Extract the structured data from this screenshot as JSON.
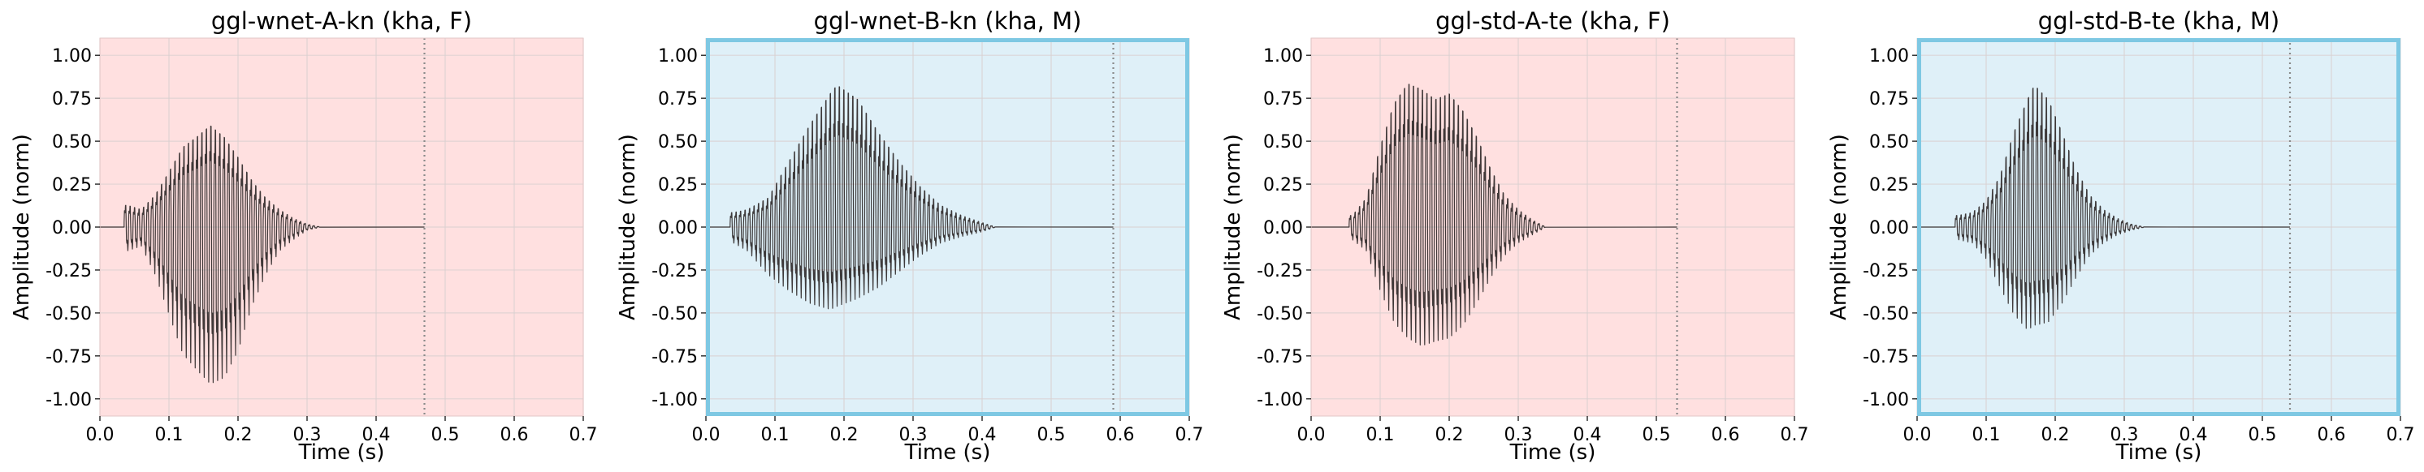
{
  "chart_data": [
    {
      "type": "line",
      "title": "ggl-wnet-A-kn (kha, F)",
      "xlabel": "Time (s)",
      "ylabel": "Amplitude (norm)",
      "xlim": [
        0.0,
        0.7
      ],
      "ylim": [
        -1.1,
        1.1
      ],
      "xticks": [
        "0.0",
        "0.1",
        "0.2",
        "0.3",
        "0.4",
        "0.5",
        "0.6",
        "0.7"
      ],
      "yticks": [
        "1.00",
        "0.75",
        "0.50",
        "0.25",
        "0.00",
        "-0.25",
        "-0.50",
        "-0.75",
        "-1.00"
      ],
      "background_color": "#ffe0e0",
      "border_color": "",
      "grid": true,
      "marker_x": 0.47,
      "signal_end": 0.47,
      "envelope": [
        {
          "t": 0.04,
          "upper": 0.15,
          "lower": -0.15
        },
        {
          "t": 0.06,
          "upper": 0.12,
          "lower": -0.12
        },
        {
          "t": 0.08,
          "upper": 0.22,
          "lower": -0.3
        },
        {
          "t": 0.1,
          "upper": 0.38,
          "lower": -0.55
        },
        {
          "t": 0.12,
          "upper": 0.55,
          "lower": -0.8
        },
        {
          "t": 0.14,
          "upper": 0.62,
          "lower": -0.9
        },
        {
          "t": 0.16,
          "upper": 0.7,
          "lower": -0.99
        },
        {
          "t": 0.18,
          "upper": 0.62,
          "lower": -0.95
        },
        {
          "t": 0.2,
          "upper": 0.48,
          "lower": -0.78
        },
        {
          "t": 0.22,
          "upper": 0.32,
          "lower": -0.5
        },
        {
          "t": 0.24,
          "upper": 0.2,
          "lower": -0.3
        },
        {
          "t": 0.26,
          "upper": 0.12,
          "lower": -0.15
        },
        {
          "t": 0.28,
          "upper": 0.06,
          "lower": -0.08
        },
        {
          "t": 0.3,
          "upper": 0.02,
          "lower": -0.02
        },
        {
          "t": 0.32,
          "upper": 0.0,
          "lower": 0.0
        }
      ]
    },
    {
      "type": "line",
      "title": "ggl-wnet-B-kn (kha, M)",
      "xlabel": "Time (s)",
      "ylabel": "Amplitude (norm)",
      "xlim": [
        0.0,
        0.7
      ],
      "ylim": [
        -1.1,
        1.1
      ],
      "xticks": [
        "0.0",
        "0.1",
        "0.2",
        "0.3",
        "0.4",
        "0.5",
        "0.6",
        "0.7"
      ],
      "yticks": [
        "1.00",
        "0.75",
        "0.50",
        "0.25",
        "0.00",
        "-0.25",
        "-0.50",
        "-0.75",
        "-1.00"
      ],
      "background_color": "#dff0f8",
      "border_color": "#7ec8e3",
      "grid": true,
      "marker_x": 0.59,
      "signal_end": 0.59,
      "envelope": [
        {
          "t": 0.04,
          "upper": 0.1,
          "lower": -0.1
        },
        {
          "t": 0.06,
          "upper": 0.12,
          "lower": -0.15
        },
        {
          "t": 0.09,
          "upper": 0.2,
          "lower": -0.3
        },
        {
          "t": 0.12,
          "upper": 0.45,
          "lower": -0.4
        },
        {
          "t": 0.15,
          "upper": 0.7,
          "lower": -0.48
        },
        {
          "t": 0.18,
          "upper": 0.92,
          "lower": -0.52
        },
        {
          "t": 0.19,
          "upper": 0.98,
          "lower": -0.5
        },
        {
          "t": 0.22,
          "upper": 0.88,
          "lower": -0.45
        },
        {
          "t": 0.25,
          "upper": 0.65,
          "lower": -0.38
        },
        {
          "t": 0.28,
          "upper": 0.45,
          "lower": -0.28
        },
        {
          "t": 0.31,
          "upper": 0.28,
          "lower": -0.18
        },
        {
          "t": 0.34,
          "upper": 0.15,
          "lower": -0.1
        },
        {
          "t": 0.37,
          "upper": 0.08,
          "lower": -0.06
        },
        {
          "t": 0.4,
          "upper": 0.03,
          "lower": -0.03
        },
        {
          "t": 0.42,
          "upper": 0.0,
          "lower": 0.0
        }
      ]
    },
    {
      "type": "line",
      "title": "ggl-std-A-te (kha, F)",
      "xlabel": "Time (s)",
      "ylabel": "Amplitude (norm)",
      "xlim": [
        0.0,
        0.7
      ],
      "ylim": [
        -1.1,
        1.1
      ],
      "xticks": [
        "0.0",
        "0.1",
        "0.2",
        "0.3",
        "0.4",
        "0.5",
        "0.6",
        "0.7"
      ],
      "yticks": [
        "1.00",
        "0.75",
        "0.50",
        "0.25",
        "0.00",
        "-0.25",
        "-0.50",
        "-0.75",
        "-1.00"
      ],
      "background_color": "#ffe0e0",
      "border_color": "",
      "grid": true,
      "marker_x": 0.53,
      "signal_end": 0.53,
      "envelope": [
        {
          "t": 0.06,
          "upper": 0.08,
          "lower": -0.08
        },
        {
          "t": 0.08,
          "upper": 0.2,
          "lower": -0.15
        },
        {
          "t": 0.1,
          "upper": 0.55,
          "lower": -0.4
        },
        {
          "t": 0.12,
          "upper": 0.85,
          "lower": -0.6
        },
        {
          "t": 0.14,
          "upper": 0.99,
          "lower": -0.7
        },
        {
          "t": 0.16,
          "upper": 0.95,
          "lower": -0.75
        },
        {
          "t": 0.18,
          "upper": 0.88,
          "lower": -0.72
        },
        {
          "t": 0.2,
          "upper": 0.92,
          "lower": -0.7
        },
        {
          "t": 0.22,
          "upper": 0.8,
          "lower": -0.62
        },
        {
          "t": 0.24,
          "upper": 0.62,
          "lower": -0.48
        },
        {
          "t": 0.26,
          "upper": 0.4,
          "lower": -0.32
        },
        {
          "t": 0.28,
          "upper": 0.22,
          "lower": -0.18
        },
        {
          "t": 0.3,
          "upper": 0.12,
          "lower": -0.1
        },
        {
          "t": 0.32,
          "upper": 0.05,
          "lower": -0.05
        },
        {
          "t": 0.34,
          "upper": 0.0,
          "lower": 0.0
        }
      ]
    },
    {
      "type": "line",
      "title": "ggl-std-B-te (kha, M)",
      "xlabel": "Time (s)",
      "ylabel": "Amplitude (norm)",
      "xlim": [
        0.0,
        0.7
      ],
      "ylim": [
        -1.1,
        1.1
      ],
      "xticks": [
        "0.0",
        "0.1",
        "0.2",
        "0.3",
        "0.4",
        "0.5",
        "0.6",
        "0.7"
      ],
      "yticks": [
        "1.00",
        "0.75",
        "0.50",
        "0.25",
        "0.00",
        "-0.25",
        "-0.50",
        "-0.75",
        "-1.00"
      ],
      "background_color": "#dff0f8",
      "border_color": "#7ec8e3",
      "grid": true,
      "marker_x": 0.54,
      "signal_end": 0.54,
      "envelope": [
        {
          "t": 0.06,
          "upper": 0.08,
          "lower": -0.08
        },
        {
          "t": 0.08,
          "upper": 0.1,
          "lower": -0.1
        },
        {
          "t": 0.1,
          "upper": 0.18,
          "lower": -0.2
        },
        {
          "t": 0.12,
          "upper": 0.35,
          "lower": -0.38
        },
        {
          "t": 0.14,
          "upper": 0.65,
          "lower": -0.55
        },
        {
          "t": 0.16,
          "upper": 0.88,
          "lower": -0.65
        },
        {
          "t": 0.17,
          "upper": 0.98,
          "lower": -0.62
        },
        {
          "t": 0.19,
          "upper": 0.88,
          "lower": -0.6
        },
        {
          "t": 0.21,
          "upper": 0.65,
          "lower": -0.48
        },
        {
          "t": 0.23,
          "upper": 0.4,
          "lower": -0.32
        },
        {
          "t": 0.25,
          "upper": 0.22,
          "lower": -0.18
        },
        {
          "t": 0.27,
          "upper": 0.12,
          "lower": -0.1
        },
        {
          "t": 0.29,
          "upper": 0.06,
          "lower": -0.05
        },
        {
          "t": 0.31,
          "upper": 0.02,
          "lower": -0.02
        },
        {
          "t": 0.33,
          "upper": 0.0,
          "lower": 0.0
        }
      ]
    }
  ]
}
